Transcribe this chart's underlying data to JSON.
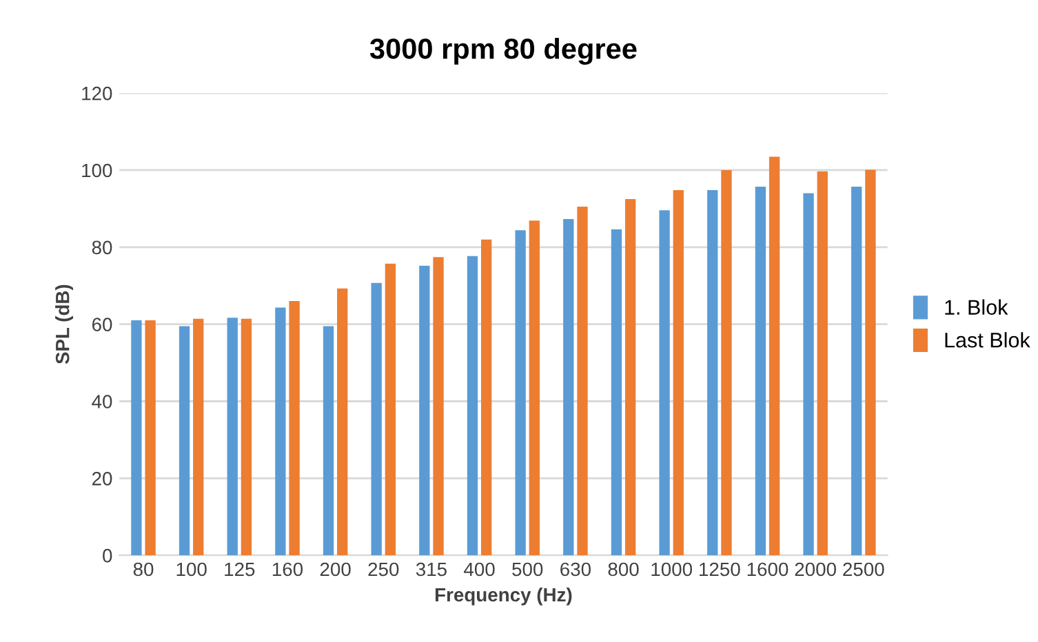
{
  "chart_data": {
    "type": "bar",
    "title": "3000 rpm 80 degree",
    "xlabel": "Frequency (Hz)",
    "ylabel": "SPL (dB)",
    "categories": [
      "80",
      "100",
      "125",
      "160",
      "200",
      "250",
      "315",
      "400",
      "500",
      "630",
      "800",
      "1000",
      "1250",
      "1600",
      "2000",
      "2500"
    ],
    "series": [
      {
        "name": "1. Blok",
        "color": "#5b9bd5",
        "values": [
          61,
          59.5,
          61.7,
          64.3,
          59.5,
          70.7,
          75.2,
          77.7,
          84.4,
          87.3,
          84.6,
          89.6,
          94.8,
          95.7,
          94,
          95.7
        ]
      },
      {
        "name": "Last Blok",
        "color": "#ed7d31",
        "values": [
          61,
          61.4,
          61.4,
          66,
          69.3,
          75.7,
          77.4,
          82,
          86.9,
          90.5,
          92.5,
          94.8,
          100,
          103.5,
          99.7,
          100.1
        ]
      }
    ],
    "ylim": [
      0,
      120
    ],
    "yticks": [
      0,
      20,
      40,
      60,
      80,
      100,
      120
    ],
    "grid": "y",
    "legend": "right"
  }
}
